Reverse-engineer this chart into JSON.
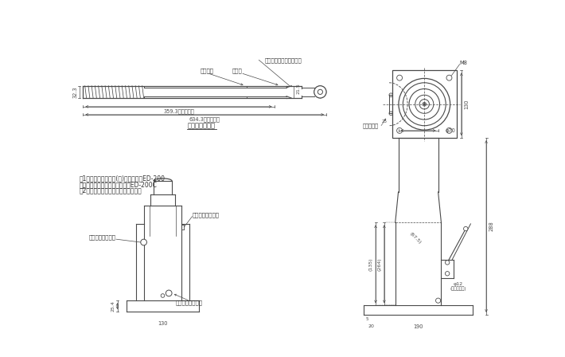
{
  "bg_color": "#ffffff",
  "line_color": "#4a4a4a",
  "dim_color": "#4a4a4a",
  "text_color": "#333333",
  "notes": [
    "注1．型式　標準塗装(赤)タイプ　：ED-200",
    "　　　ニッケルめっきタイプ：ED-200C",
    "　2．専用操作レバーが付置します。"
  ]
}
